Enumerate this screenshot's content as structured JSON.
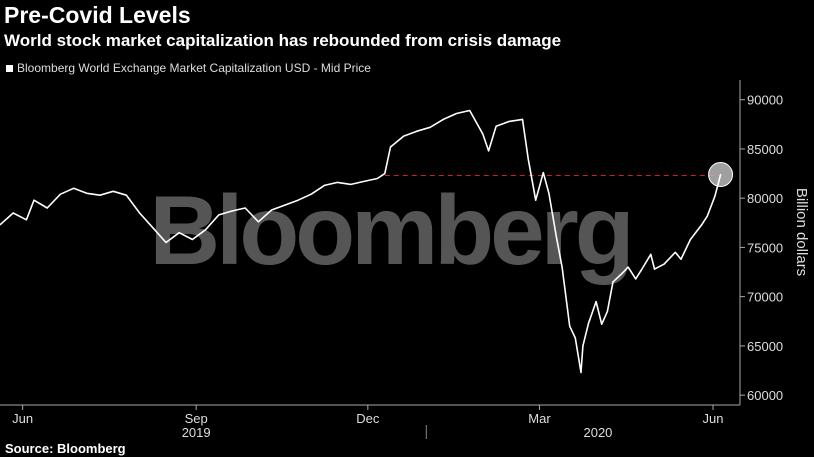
{
  "title": "Pre-Covid Levels",
  "subtitle": "World stock market capitalization has rebounded from crisis damage",
  "legend": "Bloomberg World Exchange Market Capitalization USD - Mid Price",
  "source": "Source: Bloomberg",
  "watermark": "Bloomberg",
  "colors": {
    "background": "#000000",
    "line": "#ffffff",
    "reference_line": "#cc2222",
    "watermark": "#555555"
  },
  "chart_data": {
    "type": "line",
    "title": "Pre-Covid Levels",
    "subtitle": "World stock market capitalization has rebounded from crisis damage",
    "ylabel": "Billion dollars",
    "ylim": [
      59000,
      92000
    ],
    "yticks": [
      60000,
      65000,
      70000,
      75000,
      80000,
      85000,
      90000
    ],
    "ytick_labels": [
      "60000",
      "65000",
      "70000",
      "75000",
      "80000",
      "85000",
      "90000"
    ],
    "xticks": [
      {
        "label": "Jun",
        "date": "2019-06-01"
      },
      {
        "label": "Sep",
        "date": "2019-09-01"
      },
      {
        "label": "Dec",
        "date": "2019-12-01"
      },
      {
        "label": "Mar",
        "date": "2020-03-01"
      },
      {
        "label": "Jun",
        "date": "2020-06-01"
      }
    ],
    "year_labels": [
      {
        "label": "2019",
        "date": "2019-09-01"
      },
      {
        "label": "2020",
        "date": "2020-04-01"
      }
    ],
    "xlim": [
      "2019-05-20",
      "2020-06-10"
    ],
    "grid": false,
    "legend_position": "top-left",
    "series": [
      {
        "name": "Bloomberg World Exchange Market Capitalization USD - Mid Price",
        "points": [
          [
            "2019-05-20",
            77300
          ],
          [
            "2019-05-27",
            78500
          ],
          [
            "2019-06-03",
            77800
          ],
          [
            "2019-06-07",
            79800
          ],
          [
            "2019-06-14",
            79000
          ],
          [
            "2019-06-21",
            80400
          ],
          [
            "2019-06-28",
            81000
          ],
          [
            "2019-07-05",
            80500
          ],
          [
            "2019-07-12",
            80300
          ],
          [
            "2019-07-19",
            80700
          ],
          [
            "2019-07-26",
            80300
          ],
          [
            "2019-08-02",
            78500
          ],
          [
            "2019-08-09",
            77000
          ],
          [
            "2019-08-16",
            75500
          ],
          [
            "2019-08-23",
            76500
          ],
          [
            "2019-08-30",
            75800
          ],
          [
            "2019-09-06",
            76800
          ],
          [
            "2019-09-13",
            78300
          ],
          [
            "2019-09-20",
            78700
          ],
          [
            "2019-09-27",
            79000
          ],
          [
            "2019-10-04",
            77600
          ],
          [
            "2019-10-11",
            78800
          ],
          [
            "2019-10-18",
            79300
          ],
          [
            "2019-10-25",
            79800
          ],
          [
            "2019-11-01",
            80400
          ],
          [
            "2019-11-08",
            81300
          ],
          [
            "2019-11-15",
            81600
          ],
          [
            "2019-11-22",
            81400
          ],
          [
            "2019-11-29",
            81700
          ],
          [
            "2019-12-06",
            82000
          ],
          [
            "2019-12-10",
            82500
          ],
          [
            "2019-12-13",
            85200
          ],
          [
            "2019-12-20",
            86300
          ],
          [
            "2019-12-27",
            86800
          ],
          [
            "2020-01-03",
            87200
          ],
          [
            "2020-01-10",
            88000
          ],
          [
            "2020-01-17",
            88600
          ],
          [
            "2020-01-24",
            88900
          ],
          [
            "2020-01-31",
            86500
          ],
          [
            "2020-02-03",
            84800
          ],
          [
            "2020-02-07",
            87300
          ],
          [
            "2020-02-14",
            87800
          ],
          [
            "2020-02-21",
            88000
          ],
          [
            "2020-02-24",
            84000
          ],
          [
            "2020-02-28",
            79800
          ],
          [
            "2020-03-03",
            82600
          ],
          [
            "2020-03-06",
            80500
          ],
          [
            "2020-03-10",
            76000
          ],
          [
            "2020-03-13",
            73000
          ],
          [
            "2020-03-17",
            67000
          ],
          [
            "2020-03-20",
            65800
          ],
          [
            "2020-03-23",
            62300
          ],
          [
            "2020-03-24",
            65000
          ],
          [
            "2020-03-27",
            67300
          ],
          [
            "2020-03-31",
            69500
          ],
          [
            "2020-04-03",
            67200
          ],
          [
            "2020-04-06",
            68500
          ],
          [
            "2020-04-09",
            71500
          ],
          [
            "2020-04-14",
            72400
          ],
          [
            "2020-04-17",
            73000
          ],
          [
            "2020-04-21",
            71800
          ],
          [
            "2020-04-24",
            72700
          ],
          [
            "2020-04-29",
            74300
          ],
          [
            "2020-05-01",
            72800
          ],
          [
            "2020-05-06",
            73300
          ],
          [
            "2020-05-12",
            74500
          ],
          [
            "2020-05-15",
            73800
          ],
          [
            "2020-05-20",
            75800
          ],
          [
            "2020-05-26",
            77300
          ],
          [
            "2020-05-29",
            78200
          ],
          [
            "2020-06-02",
            80200
          ],
          [
            "2020-06-05",
            82400
          ]
        ]
      }
    ],
    "reference_line": {
      "y": 82300,
      "from": "2019-12-10",
      "to": "2020-06-05",
      "style": "dashed"
    },
    "highlight": {
      "date": "2020-06-05",
      "value": 82400
    }
  }
}
